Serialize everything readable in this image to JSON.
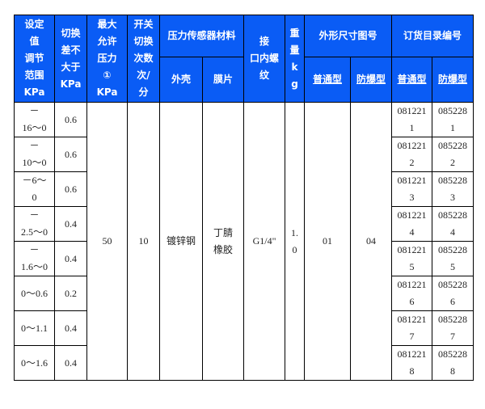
{
  "header": {
    "range": "设定\n值\n调节\n范围\nKPa",
    "diff": "切换\n差不\n大于\nKPa",
    "max_pressure": "最大\n允许\n压力\n①\nKPa",
    "switch_count": "开关\n切换\n次数\n次/\n分",
    "sensor_material": "压力传感器材料",
    "shell": "外壳",
    "membrane": "膜片",
    "thread": "接\n口内螺\n纹",
    "weight": "重\n量\nk\ng",
    "dimension_drawing": "外形尺寸图号",
    "order_catalog": "订货目录编号",
    "normal": "普通型",
    "explosion_proof": "防爆型"
  },
  "shared": {
    "max_pressure": "50",
    "switch_count": "10",
    "shell": "镀锌钢",
    "membrane": "丁腈\n橡胶",
    "thread": "G1/4\"",
    "weight": "1.\n0",
    "drawing_normal": "01",
    "drawing_explosion": "04"
  },
  "rows": [
    {
      "range": "－\n16～0",
      "diff": "0.6",
      "normal": "081221\n1",
      "explosion": "085228\n1"
    },
    {
      "range": "－\n10～0",
      "diff": "0.6",
      "normal": "081221\n2",
      "explosion": "085228\n2"
    },
    {
      "range": "－6～\n0",
      "diff": "0.6",
      "normal": "081221\n3",
      "explosion": "085228\n3"
    },
    {
      "range": "－\n2.5～0",
      "diff": "0.4",
      "normal": "081221\n4",
      "explosion": "085228\n4"
    },
    {
      "range": "－\n1.6～0",
      "diff": "0.4",
      "normal": "081221\n5",
      "explosion": "085228\n5"
    },
    {
      "range": "0～0.6",
      "diff": "0.2",
      "normal": "081221\n6",
      "explosion": "085228\n6"
    },
    {
      "range": "0～1.1",
      "diff": "0.4",
      "normal": "081221\n7",
      "explosion": "085228\n7"
    },
    {
      "range": "0～1.6",
      "diff": "0.4",
      "normal": "081221\n8",
      "explosion": "085228\n8"
    }
  ],
  "colors": {
    "header_bg": "#0a5cf5",
    "header_text": "#ffffff"
  }
}
